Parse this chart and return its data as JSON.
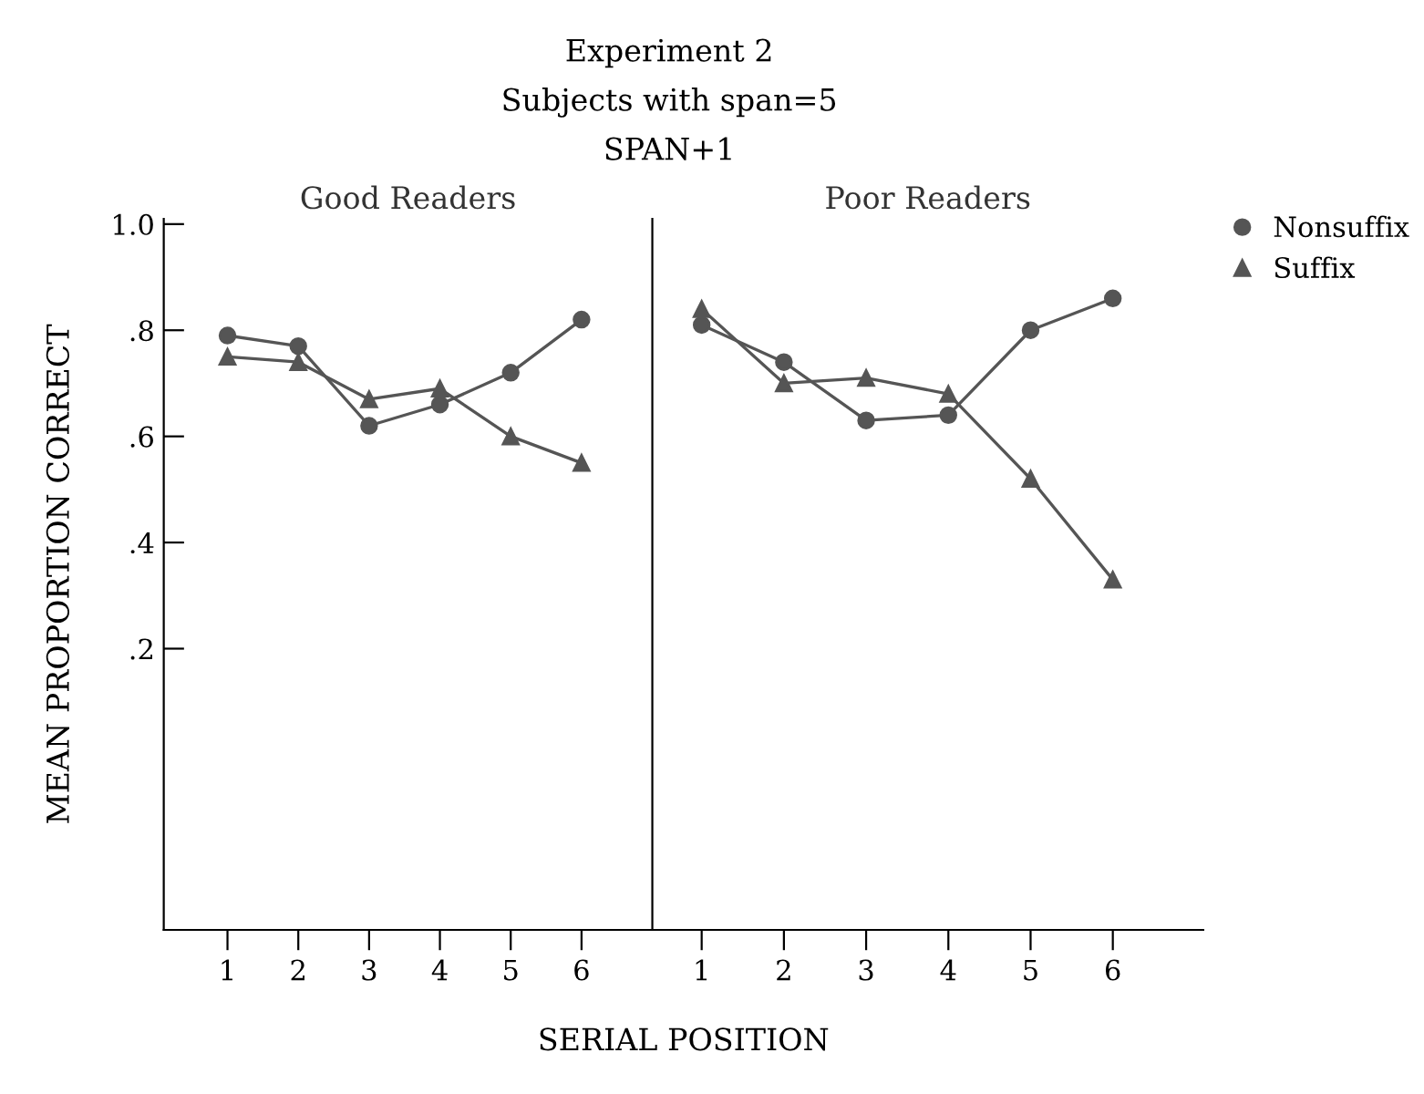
{
  "chart_data": [
    {
      "type": "line",
      "title": "Good Readers",
      "ylabel": "MEAN PROPORTION CORRECT",
      "xlabel": "SERIAL POSITION",
      "annotations": [
        "Experiment 2",
        "Subjects with span=5",
        "SPAN+1"
      ],
      "x": [
        1,
        2,
        3,
        4,
        5,
        6
      ],
      "xlim": [
        0.1,
        7.0
      ],
      "xticks": [
        1,
        2,
        3,
        4,
        5,
        6
      ],
      "ylim": [
        -0.33,
        1.01
      ],
      "yticks": [
        {
          "value": 0.2,
          "label": ".2"
        },
        {
          "value": 0.4,
          "label": ".4"
        },
        {
          "value": 0.6,
          "label": ".6"
        },
        {
          "value": 0.8,
          "label": ".8"
        },
        {
          "value": 1.0,
          "label": "1.0"
        }
      ],
      "grid": false,
      "legend": false,
      "series": [
        {
          "color": "#555555",
          "marker": "circle",
          "values": [
            0.79,
            0.77,
            0.62,
            0.66,
            0.72,
            0.82
          ]
        },
        {
          "color": "#555555",
          "marker": "triangle",
          "values": [
            0.75,
            0.74,
            0.67,
            0.69,
            0.6,
            0.55
          ]
        }
      ]
    },
    {
      "type": "line",
      "title": "Poor Readers",
      "tick_labels": "x",
      "x": [
        1,
        2,
        3,
        4,
        5,
        6
      ],
      "xlim": [
        0.4,
        7.1
      ],
      "xticks": [
        1,
        2,
        3,
        4,
        5,
        6
      ],
      "ylim": [
        -0.33,
        1.01
      ],
      "grid": false,
      "legend": "top right",
      "series": [
        {
          "name": "Nonsuffix",
          "color": "#555555",
          "marker": "circle",
          "values": [
            0.81,
            0.74,
            0.63,
            0.64,
            0.8,
            0.86
          ]
        },
        {
          "name": "Suffix",
          "color": "#555555",
          "marker": "triangle",
          "values": [
            0.84,
            0.7,
            0.71,
            0.68,
            0.52,
            0.33
          ]
        }
      ]
    }
  ]
}
